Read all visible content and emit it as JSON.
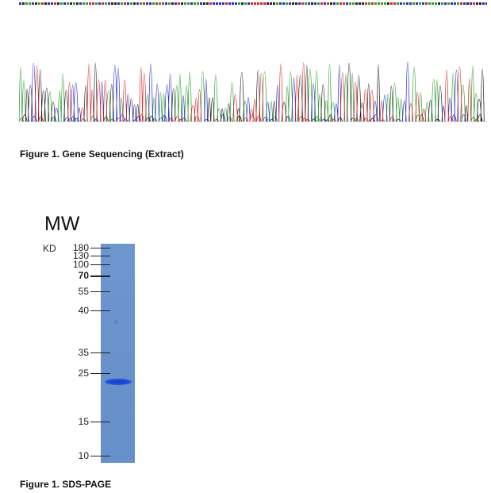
{
  "figure1": {
    "caption": "Figure 1. Gene Sequencing (Extract)",
    "base_colors": {
      "A": "#2ca02c",
      "C": "#2b2bd0",
      "G": "#222222",
      "T": "#d62728"
    }
  },
  "figure2": {
    "caption": "Figure 1. SDS-PAGE",
    "lane_header": "MW",
    "unit": "KD",
    "markers": [
      {
        "label": "180",
        "bold": false
      },
      {
        "label": "130",
        "bold": false
      },
      {
        "label": "100",
        "bold": false
      },
      {
        "label": "70",
        "bold": true
      },
      {
        "label": "55",
        "bold": false
      },
      {
        "label": "40",
        "bold": false
      },
      {
        "label": "35",
        "bold": false
      },
      {
        "label": "25",
        "bold": false
      },
      {
        "label": "15",
        "bold": false
      },
      {
        "label": "10",
        "bold": false
      }
    ],
    "lane_color": "#6b93cc",
    "band_color": "#1446d4"
  }
}
